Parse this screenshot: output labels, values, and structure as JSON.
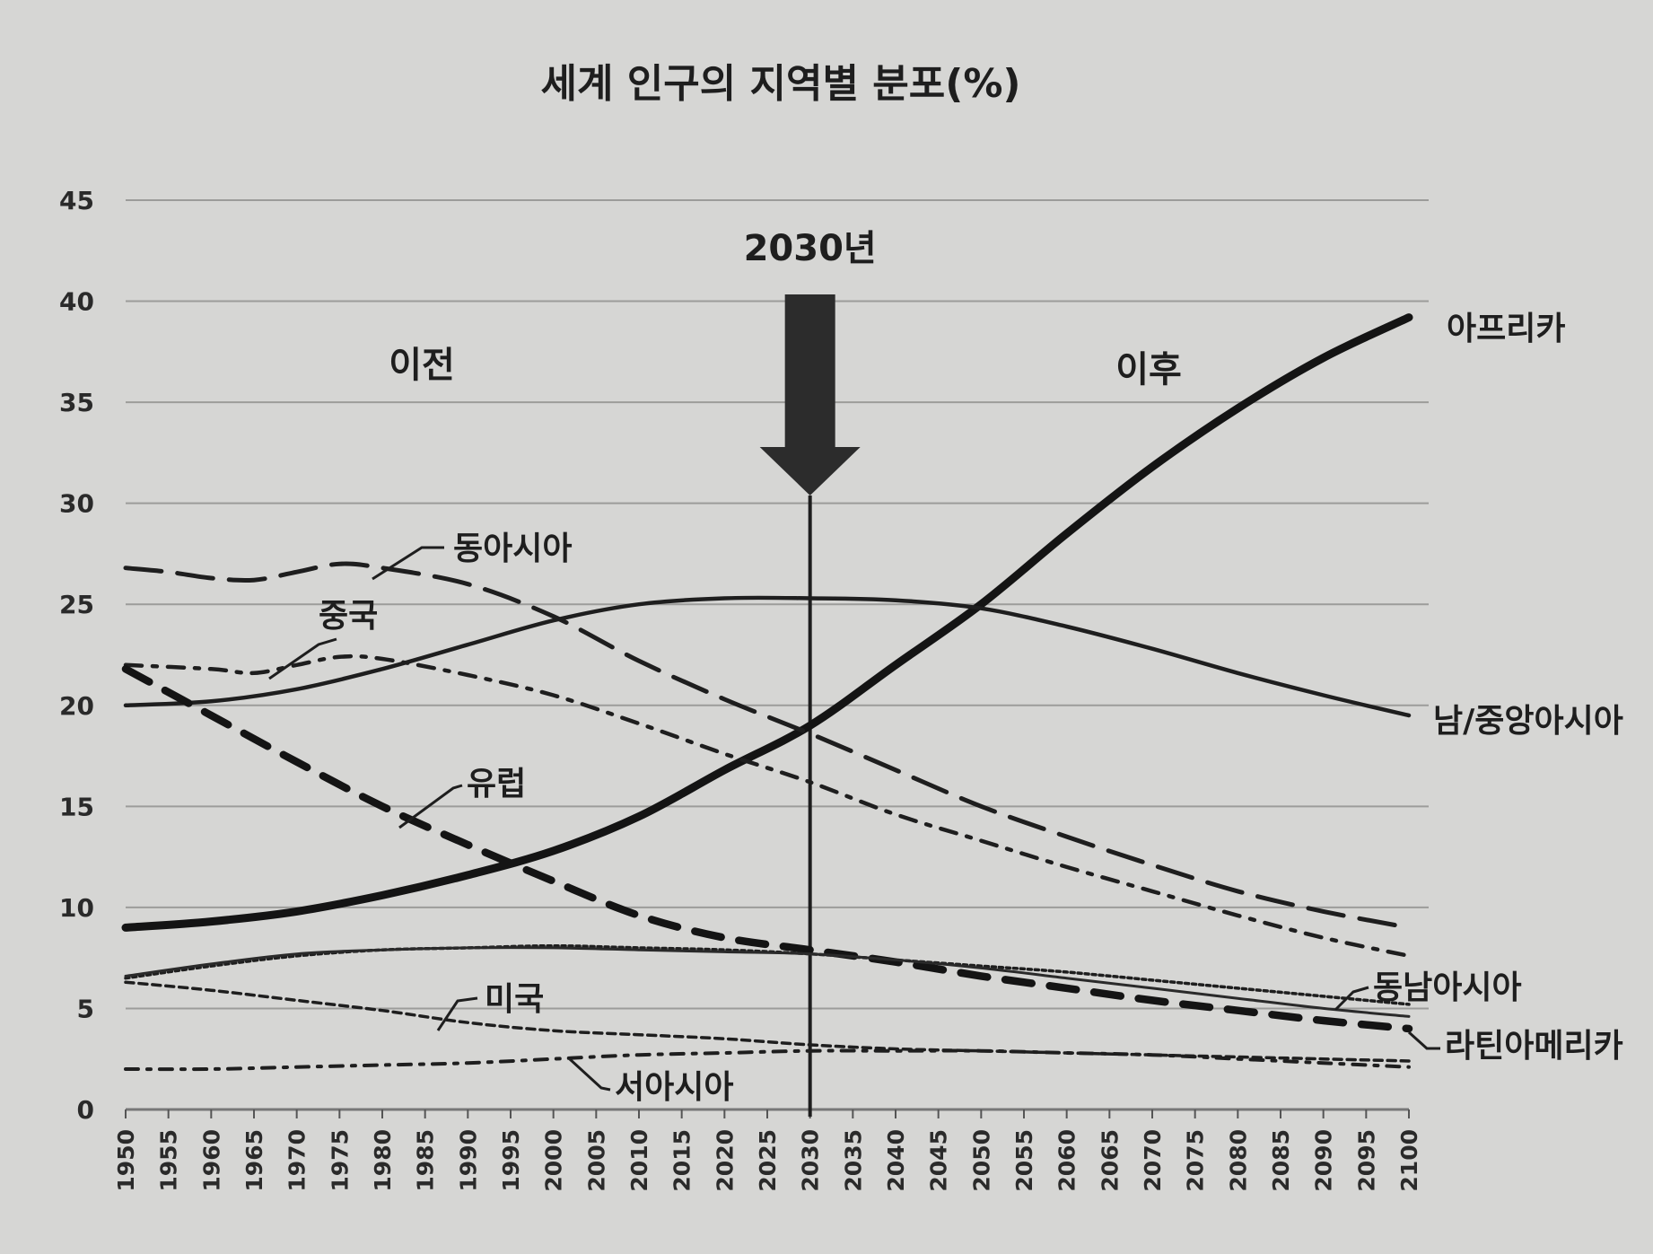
{
  "chart_data": {
    "type": "line",
    "title": "세계 인구의 지역별 분포(%)",
    "xlabel": "",
    "ylabel": "",
    "ylim": [
      0,
      45
    ],
    "xlim": [
      1950,
      2100
    ],
    "y_ticks": [
      0,
      5,
      10,
      15,
      20,
      25,
      30,
      35,
      40,
      45
    ],
    "x_ticks": [
      1950,
      1955,
      1960,
      1965,
      1970,
      1975,
      1980,
      1985,
      1990,
      1995,
      2000,
      2005,
      2010,
      2015,
      2020,
      2025,
      2030,
      2035,
      2040,
      2045,
      2050,
      2055,
      2060,
      2065,
      2070,
      2075,
      2080,
      2085,
      2090,
      2095,
      2100
    ],
    "grid": true,
    "annotations": {
      "marker_year": 2030,
      "marker_label": "2030년",
      "before_label": "이전",
      "after_label": "이후"
    },
    "series": [
      {
        "name": "아프리카",
        "style": "thick-solid",
        "x": [
          1950,
          1960,
          1970,
          1980,
          1990,
          2000,
          2010,
          2020,
          2030,
          2040,
          2050,
          2060,
          2070,
          2080,
          2090,
          2100
        ],
        "values": [
          9.0,
          9.3,
          9.8,
          10.6,
          11.6,
          12.8,
          14.5,
          16.8,
          19.0,
          22.0,
          25.0,
          28.5,
          31.8,
          34.7,
          37.2,
          39.2
        ]
      },
      {
        "name": "남/중앙아시아",
        "style": "solid",
        "x": [
          1950,
          1960,
          1970,
          1980,
          1990,
          2000,
          2010,
          2020,
          2030,
          2040,
          2050,
          2060,
          2070,
          2080,
          2090,
          2100
        ],
        "values": [
          20.0,
          20.2,
          20.8,
          21.8,
          23.0,
          24.2,
          25.0,
          25.3,
          25.3,
          25.2,
          24.8,
          23.9,
          22.8,
          21.6,
          20.5,
          19.5
        ]
      },
      {
        "name": "동아시아",
        "style": "long-dash",
        "x": [
          1950,
          1955,
          1960,
          1965,
          1970,
          1975,
          1980,
          1990,
          2000,
          2010,
          2020,
          2030,
          2040,
          2050,
          2060,
          2070,
          2080,
          2090,
          2100
        ],
        "values": [
          26.8,
          26.6,
          26.3,
          26.2,
          26.6,
          27.0,
          26.8,
          26.0,
          24.4,
          22.2,
          20.3,
          18.6,
          16.8,
          15.0,
          13.5,
          12.1,
          10.8,
          9.8,
          9.0
        ]
      },
      {
        "name": "중국",
        "style": "dash-dot",
        "x": [
          1950,
          1960,
          1965,
          1970,
          1975,
          1980,
          1990,
          2000,
          2010,
          2020,
          2030,
          2040,
          2050,
          2060,
          2070,
          2080,
          2090,
          2100
        ],
        "values": [
          22.0,
          21.8,
          21.6,
          22.0,
          22.4,
          22.3,
          21.5,
          20.5,
          19.1,
          17.6,
          16.2,
          14.6,
          13.3,
          12.0,
          10.8,
          9.6,
          8.5,
          7.6
        ]
      },
      {
        "name": "유럽",
        "style": "thick-dash",
        "x": [
          1950,
          1960,
          1970,
          1980,
          1990,
          2000,
          2010,
          2020,
          2030,
          2040,
          2050,
          2060,
          2070,
          2080,
          2090,
          2100
        ],
        "values": [
          21.8,
          19.5,
          17.2,
          15.0,
          13.1,
          11.3,
          9.6,
          8.5,
          7.9,
          7.3,
          6.6,
          6.0,
          5.4,
          4.9,
          4.4,
          4.0
        ]
      },
      {
        "name": "동남아시아",
        "style": "fine-dot",
        "x": [
          1950,
          1960,
          1970,
          1980,
          1990,
          2000,
          2010,
          2020,
          2030,
          2040,
          2050,
          2060,
          2070,
          2080,
          2090,
          2100
        ],
        "values": [
          6.5,
          7.1,
          7.6,
          7.9,
          8.0,
          8.1,
          8.0,
          7.9,
          7.7,
          7.4,
          7.1,
          6.8,
          6.4,
          6.0,
          5.6,
          5.2
        ]
      },
      {
        "name": "라틴아메리카",
        "style": "thin-solid",
        "x": [
          1950,
          1960,
          1970,
          1980,
          1990,
          2000,
          2010,
          2020,
          2030,
          2040,
          2050,
          2060,
          2070,
          2080,
          2090,
          2100
        ],
        "values": [
          6.6,
          7.2,
          7.7,
          7.9,
          8.0,
          8.0,
          7.9,
          7.8,
          7.7,
          7.4,
          7.0,
          6.5,
          6.0,
          5.5,
          5.0,
          4.6
        ]
      },
      {
        "name": "미국",
        "style": "short-dash",
        "x": [
          1950,
          1960,
          1970,
          1980,
          1990,
          2000,
          2010,
          2020,
          2030,
          2040,
          2050,
          2060,
          2070,
          2080,
          2090,
          2100
        ],
        "values": [
          6.3,
          5.9,
          5.4,
          4.9,
          4.3,
          3.9,
          3.7,
          3.5,
          3.2,
          3.0,
          2.9,
          2.8,
          2.7,
          2.6,
          2.5,
          2.4
        ]
      },
      {
        "name": "서아시아",
        "style": "dash-dot-fine",
        "x": [
          1950,
          1960,
          1970,
          1980,
          1990,
          2000,
          2010,
          2020,
          2030,
          2040,
          2050,
          2060,
          2070,
          2080,
          2090,
          2100
        ],
        "values": [
          2.0,
          2.0,
          2.1,
          2.2,
          2.3,
          2.5,
          2.7,
          2.8,
          2.9,
          2.9,
          2.9,
          2.8,
          2.7,
          2.5,
          2.3,
          2.1
        ]
      }
    ]
  }
}
